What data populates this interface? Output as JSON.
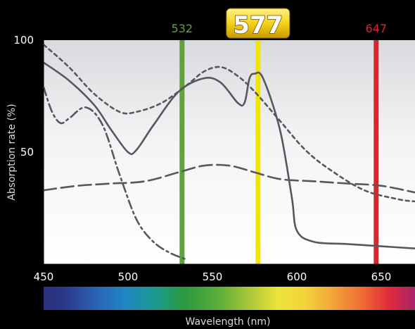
{
  "chart_data": {
    "type": "line",
    "xlabel": "Wavelength (nm)",
    "ylabel": "Absorption rate (%)",
    "xlim": [
      450,
      670
    ],
    "ylim": [
      0,
      100
    ],
    "x_ticks": [
      "450",
      "500",
      "550",
      "600",
      "650"
    ],
    "x_tick_values": [
      450,
      500,
      550,
      600,
      650
    ],
    "y_ticks": [
      "100",
      "50"
    ],
    "y_tick_values": [
      100,
      50
    ],
    "grid": false,
    "markers": [
      {
        "label": "532",
        "value": 532,
        "color": "#5fa33a"
      },
      {
        "label": "577",
        "value": 577,
        "color": "#f2e600",
        "highlight": true
      },
      {
        "label": "647",
        "value": 647,
        "color": "#d8262b"
      }
    ],
    "series": [
      {
        "style": "solid",
        "x": [
          450,
          465,
          480,
          490,
          500,
          505,
          515,
          530,
          545,
          555,
          565,
          569,
          572,
          575,
          580,
          590,
          597,
          600,
          610,
          630,
          650,
          670
        ],
        "y": [
          90,
          82,
          71,
          60,
          50,
          51,
          62,
          77,
          83,
          81,
          72,
          72,
          83,
          85,
          83,
          60,
          30,
          15,
          10,
          9,
          8,
          7
        ]
      },
      {
        "style": "short-dash",
        "x": [
          450,
          465,
          480,
          495,
          505,
          520,
          535,
          545,
          555,
          565,
          575,
          590,
          605,
          620,
          640,
          660,
          670
        ],
        "y": [
          98,
          88,
          76,
          68,
          68,
          72,
          80,
          86,
          88,
          84,
          77,
          64,
          51,
          42,
          33,
          29,
          28
        ]
      },
      {
        "style": "dash-dot",
        "x": [
          450,
          455,
          460,
          465,
          475,
          485,
          495,
          505,
          515,
          525,
          535
        ],
        "y": [
          79,
          68,
          63,
          65,
          70,
          62,
          40,
          20,
          10,
          5,
          2
        ]
      },
      {
        "style": "long-dash",
        "x": [
          450,
          470,
          490,
          510,
          530,
          545,
          560,
          575,
          590,
          610,
          630,
          650,
          670
        ],
        "y": [
          33,
          35,
          36,
          37,
          41,
          44,
          44,
          41,
          38,
          37,
          36,
          35,
          32
        ]
      }
    ],
    "spectrum_bar": true
  }
}
